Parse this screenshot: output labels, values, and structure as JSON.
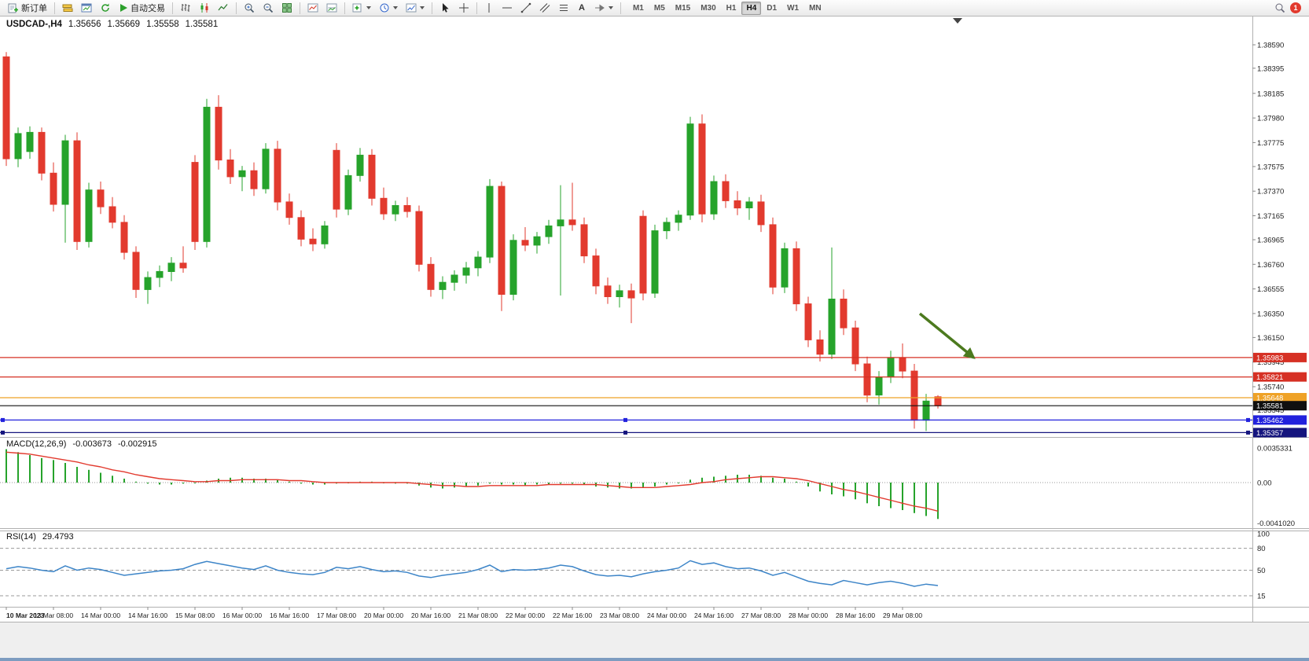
{
  "toolbar": {
    "new_order": "新订单",
    "auto_trading": "自动交易",
    "text_tool_glyph": "A",
    "timeframes": [
      "M1",
      "M5",
      "M15",
      "M30",
      "H1",
      "H4",
      "D1",
      "W1",
      "MN"
    ],
    "active_timeframe": "H4",
    "badge": "1"
  },
  "symbol_header": {
    "title": "USDCAD-,H4",
    "open": "1.35656",
    "high": "1.35669",
    "low": "1.35558",
    "close": "1.35581"
  },
  "colors": {
    "bull": "#26a32b",
    "bear": "#e23a2e",
    "macd_hist": "#26a32b",
    "macd_signal": "#e23a2e",
    "rsi": "#3d85c8",
    "arrow": "#4c7a1e"
  },
  "chart_data": {
    "type": "candlestick",
    "symbol": "USDCAD",
    "timeframe": "H4",
    "price_axis_labels": [
      "1.38590",
      "1.38395",
      "1.38185",
      "1.37980",
      "1.37775",
      "1.37575",
      "1.37370",
      "1.37165",
      "1.36965",
      "1.36760",
      "1.36555",
      "1.36350",
      "1.36150",
      "1.35945",
      "1.35740",
      "1.35545",
      "1.35340"
    ],
    "price_lines": [
      {
        "price": 1.35983,
        "label": "1.35983",
        "color": "#d63024",
        "handles": false
      },
      {
        "price": 1.35821,
        "label": "1.35821",
        "color": "#d63024",
        "handles": false
      },
      {
        "price": 1.35648,
        "label": "1.35648",
        "color": "#efa226",
        "handles": false
      },
      {
        "price": 1.35581,
        "label": "1.35581",
        "color": "#101010",
        "handles": false
      },
      {
        "price": 1.35462,
        "label": "1.35462",
        "color": "#2222dd",
        "handles": true
      },
      {
        "price": 1.35357,
        "label": "1.35357",
        "color": "#15157e",
        "handles": true
      }
    ],
    "candles": [
      [
        1.3849,
        1.3853,
        1.3758,
        1.3764
      ],
      [
        1.3764,
        1.379,
        1.3757,
        1.3785
      ],
      [
        1.377,
        1.3791,
        1.3764,
        1.3786
      ],
      [
        1.3786,
        1.379,
        1.3746,
        1.3752
      ],
      [
        1.3752,
        1.3761,
        1.372,
        1.3726
      ],
      [
        1.3726,
        1.3784,
        1.3694,
        1.3779
      ],
      [
        1.3779,
        1.3786,
        1.3688,
        1.3695
      ],
      [
        1.3695,
        1.3744,
        1.369,
        1.3738
      ],
      [
        1.3738,
        1.3745,
        1.3718,
        1.3724
      ],
      [
        1.3724,
        1.3732,
        1.3706,
        1.3711
      ],
      [
        1.3711,
        1.3717,
        1.368,
        1.3686
      ],
      [
        1.3686,
        1.3691,
        1.3648,
        1.3655
      ],
      [
        1.3655,
        1.367,
        1.3643,
        1.3665
      ],
      [
        1.3665,
        1.3675,
        1.3657,
        1.367
      ],
      [
        1.367,
        1.3682,
        1.3662,
        1.3677
      ],
      [
        1.3677,
        1.3691,
        1.3669,
        1.3673
      ],
      [
        1.3761,
        1.3767,
        1.3688,
        1.3695
      ],
      [
        1.3695,
        1.3814,
        1.369,
        1.3807
      ],
      [
        1.3807,
        1.3817,
        1.3755,
        1.3763
      ],
      [
        1.3763,
        1.3772,
        1.3743,
        1.3749
      ],
      [
        1.3749,
        1.3758,
        1.3737,
        1.3754
      ],
      [
        1.3754,
        1.3761,
        1.3733,
        1.3739
      ],
      [
        1.3739,
        1.3777,
        1.3735,
        1.3772
      ],
      [
        1.3772,
        1.3779,
        1.3721,
        1.3728
      ],
      [
        1.3728,
        1.3735,
        1.3709,
        1.3715
      ],
      [
        1.3715,
        1.3721,
        1.3691,
        1.3697
      ],
      [
        1.3697,
        1.3706,
        1.3687,
        1.3693
      ],
      [
        1.3693,
        1.3712,
        1.3689,
        1.3708
      ],
      [
        1.3771,
        1.3777,
        1.3715,
        1.3722
      ],
      [
        1.3722,
        1.3755,
        1.3717,
        1.375
      ],
      [
        1.375,
        1.3773,
        1.3745,
        1.3767
      ],
      [
        1.3767,
        1.3772,
        1.3725,
        1.3731
      ],
      [
        1.3731,
        1.374,
        1.3713,
        1.3718
      ],
      [
        1.3718,
        1.3729,
        1.3712,
        1.3725
      ],
      [
        1.3725,
        1.3732,
        1.3715,
        1.372
      ],
      [
        1.372,
        1.3725,
        1.367,
        1.3676
      ],
      [
        1.3676,
        1.3682,
        1.3649,
        1.3655
      ],
      [
        1.3655,
        1.3666,
        1.3647,
        1.3661
      ],
      [
        1.3661,
        1.3671,
        1.3654,
        1.3667
      ],
      [
        1.3667,
        1.3678,
        1.366,
        1.3673
      ],
      [
        1.3673,
        1.3687,
        1.3666,
        1.3682
      ],
      [
        1.3682,
        1.3747,
        1.3677,
        1.3741
      ],
      [
        1.3741,
        1.3745,
        1.3637,
        1.3651
      ],
      [
        1.3651,
        1.3701,
        1.3646,
        1.3696
      ],
      [
        1.3696,
        1.3707,
        1.3687,
        1.3692
      ],
      [
        1.3692,
        1.3703,
        1.3685,
        1.3699
      ],
      [
        1.3699,
        1.3713,
        1.3693,
        1.3708
      ],
      [
        1.3708,
        1.3742,
        1.365,
        1.3713
      ],
      [
        1.3713,
        1.3744,
        1.3704,
        1.3709
      ],
      [
        1.3709,
        1.3715,
        1.3677,
        1.3683
      ],
      [
        1.3683,
        1.3689,
        1.3651,
        1.3658
      ],
      [
        1.3658,
        1.3665,
        1.3643,
        1.3649
      ],
      [
        1.3649,
        1.3659,
        1.364,
        1.3654
      ],
      [
        1.3654,
        1.366,
        1.3627,
        1.3648
      ],
      [
        1.3716,
        1.3721,
        1.3646,
        1.3652
      ],
      [
        1.3652,
        1.3709,
        1.3648,
        1.3704
      ],
      [
        1.3704,
        1.3715,
        1.3697,
        1.3711
      ],
      [
        1.3711,
        1.3721,
        1.3704,
        1.3717
      ],
      [
        1.3717,
        1.3799,
        1.3713,
        1.3793
      ],
      [
        1.3793,
        1.3801,
        1.3711,
        1.3718
      ],
      [
        1.3718,
        1.375,
        1.3713,
        1.3745
      ],
      [
        1.3745,
        1.3751,
        1.3723,
        1.3729
      ],
      [
        1.3729,
        1.3737,
        1.3717,
        1.3723
      ],
      [
        1.3723,
        1.3732,
        1.3713,
        1.3728
      ],
      [
        1.3728,
        1.3734,
        1.3703,
        1.3709
      ],
      [
        1.3709,
        1.3715,
        1.3651,
        1.3657
      ],
      [
        1.3657,
        1.3694,
        1.3652,
        1.3689
      ],
      [
        1.3689,
        1.3695,
        1.3637,
        1.3643
      ],
      [
        1.3643,
        1.3649,
        1.3607,
        1.3613
      ],
      [
        1.3613,
        1.3621,
        1.3595,
        1.3601
      ],
      [
        1.3601,
        1.369,
        1.3597,
        1.3647
      ],
      [
        1.3647,
        1.3655,
        1.3617,
        1.3623
      ],
      [
        1.3623,
        1.3629,
        1.3587,
        1.3593
      ],
      [
        1.3593,
        1.3599,
        1.3561,
        1.3567
      ],
      [
        1.3567,
        1.3587,
        1.3559,
        1.3582
      ],
      [
        1.3582,
        1.3604,
        1.3577,
        1.3598
      ],
      [
        1.3598,
        1.361,
        1.3581,
        1.3587
      ],
      [
        1.3587,
        1.3593,
        1.3539,
        1.3546
      ],
      [
        1.3546,
        1.3568,
        1.3537,
        1.3562
      ],
      [
        1.35656,
        1.35669,
        1.35558,
        1.35581
      ]
    ],
    "time_axis_labels": [
      "10 Mar 2023",
      "13 Mar 08:00",
      "14 Mar 00:00",
      "14 Mar 16:00",
      "15 Mar 08:00",
      "16 Mar 00:00",
      "16 Mar 16:00",
      "17 Mar 08:00",
      "20 Mar 00:00",
      "20 Mar 16:00",
      "21 Mar 08:00",
      "22 Mar 00:00",
      "22 Mar 16:00",
      "23 Mar 08:00",
      "24 Mar 00:00",
      "24 Mar 16:00",
      "27 Mar 08:00",
      "28 Mar 00:00",
      "28 Mar 16:00",
      "29 Mar 08:00"
    ],
    "macd": {
      "label": "MACD(12,26,9)",
      "value_main": "-0.003673",
      "value_signal": "-0.002915",
      "scale_labels": [
        "0.0035331",
        "0.00",
        "-0.0041020"
      ],
      "histogram": [
        0.0034,
        0.0031,
        0.0028,
        0.0025,
        0.0023,
        0.002,
        0.0016,
        0.0013,
        0.001,
        0.0007,
        0.0004,
        0.0001,
        -0.0001,
        -0.0002,
        -0.0002,
        -0.0001,
        0.0,
        0.0002,
        0.0004,
        0.0005,
        0.0005,
        0.0004,
        0.0004,
        0.0003,
        0.0001,
        -0.0001,
        -0.0002,
        -0.0002,
        -0.0001,
        0.0,
        0.0001,
        0.0001,
        0.0,
        -0.0001,
        -0.0001,
        -0.0003,
        -0.0005,
        -0.0006,
        -0.0005,
        -0.0004,
        -0.0003,
        -0.0001,
        -0.0002,
        -0.0002,
        -0.0003,
        -0.0002,
        -0.0002,
        -0.0001,
        -0.0001,
        -0.0002,
        -0.0004,
        -0.0005,
        -0.0006,
        -0.0006,
        -0.0005,
        -0.0004,
        -0.0002,
        0.0,
        0.0003,
        0.0005,
        0.0006,
        0.0007,
        0.0008,
        0.0008,
        0.0007,
        0.0005,
        0.0004,
        0.0001,
        -0.0004,
        -0.0009,
        -0.0012,
        -0.0014,
        -0.0017,
        -0.0021,
        -0.0024,
        -0.0026,
        -0.0028,
        -0.0031,
        -0.0034,
        -0.0037
      ],
      "signal": [
        0.0031,
        0.003,
        0.0029,
        0.0027,
        0.0025,
        0.0023,
        0.0021,
        0.0018,
        0.0016,
        0.0013,
        0.0011,
        0.0008,
        0.0006,
        0.0004,
        0.0003,
        0.0002,
        0.0001,
        0.0001,
        0.0002,
        0.0002,
        0.0003,
        0.0003,
        0.0003,
        0.0003,
        0.0002,
        0.0002,
        0.0001,
        0.0,
        0.0,
        0.0,
        0.0,
        0.0,
        0.0,
        0.0,
        0.0,
        -0.0001,
        -0.0002,
        -0.0003,
        -0.0003,
        -0.0004,
        -0.0004,
        -0.0003,
        -0.0003,
        -0.0003,
        -0.0003,
        -0.0003,
        -0.0002,
        -0.0002,
        -0.0002,
        -0.0002,
        -0.0002,
        -0.0003,
        -0.0004,
        -0.0005,
        -0.0005,
        -0.0005,
        -0.0004,
        -0.0003,
        -0.0002,
        0.0,
        0.0001,
        0.0003,
        0.0004,
        0.0005,
        0.0006,
        0.0006,
        0.0005,
        0.0004,
        0.0002,
        -0.0001,
        -0.0004,
        -0.0007,
        -0.0009,
        -0.0012,
        -0.0015,
        -0.0018,
        -0.0021,
        -0.0024,
        -0.0026,
        -0.0029
      ]
    },
    "rsi": {
      "label": "RSI(14)",
      "value": "29.4793",
      "scale_labels": [
        "100",
        "80",
        "50",
        "15"
      ],
      "levels": [
        80,
        50,
        15
      ],
      "values": [
        52,
        55,
        53,
        50,
        48,
        56,
        50,
        53,
        51,
        47,
        43,
        45,
        47,
        49,
        50,
        52,
        58,
        62,
        59,
        56,
        53,
        51,
        56,
        50,
        47,
        45,
        44,
        47,
        54,
        52,
        55,
        51,
        48,
        49,
        47,
        42,
        40,
        43,
        45,
        47,
        51,
        57,
        48,
        51,
        50,
        51,
        53,
        57,
        55,
        49,
        44,
        42,
        43,
        41,
        45,
        48,
        50,
        53,
        63,
        58,
        60,
        55,
        52,
        53,
        49,
        43,
        47,
        41,
        35,
        32,
        30,
        36,
        33,
        30,
        33,
        35,
        32,
        28,
        31,
        29
      ]
    }
  }
}
